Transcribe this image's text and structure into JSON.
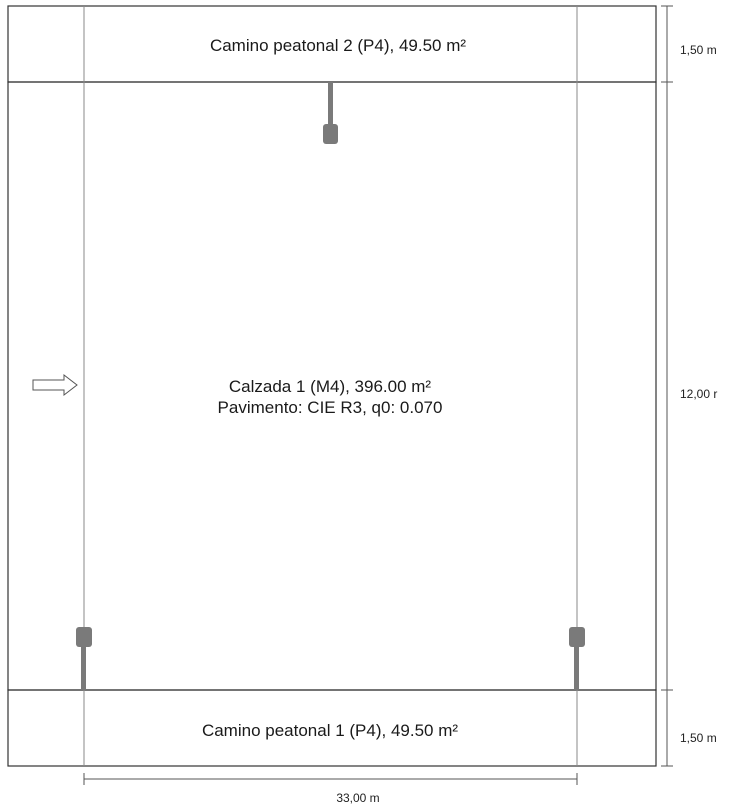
{
  "walkway_top": {
    "label": "Camino peatonal 2 (P4), 49.50 m²"
  },
  "roadway": {
    "label_line1": "Calzada 1 (M4), 396.00 m²",
    "label_line2": "Pavimento: CIE R3, q0: 0.070"
  },
  "walkway_bottom": {
    "label": "Camino peatonal 1 (P4), 49.50 m²"
  },
  "dimensions": {
    "top_height": "1,50 m",
    "middle_height": "12,00 r",
    "bottom_height": "1,50 m",
    "width": "33,00 m"
  },
  "colors": {
    "line": "#333333",
    "luminaire": "#7a7a7a",
    "guide": "#8a8a8a"
  }
}
